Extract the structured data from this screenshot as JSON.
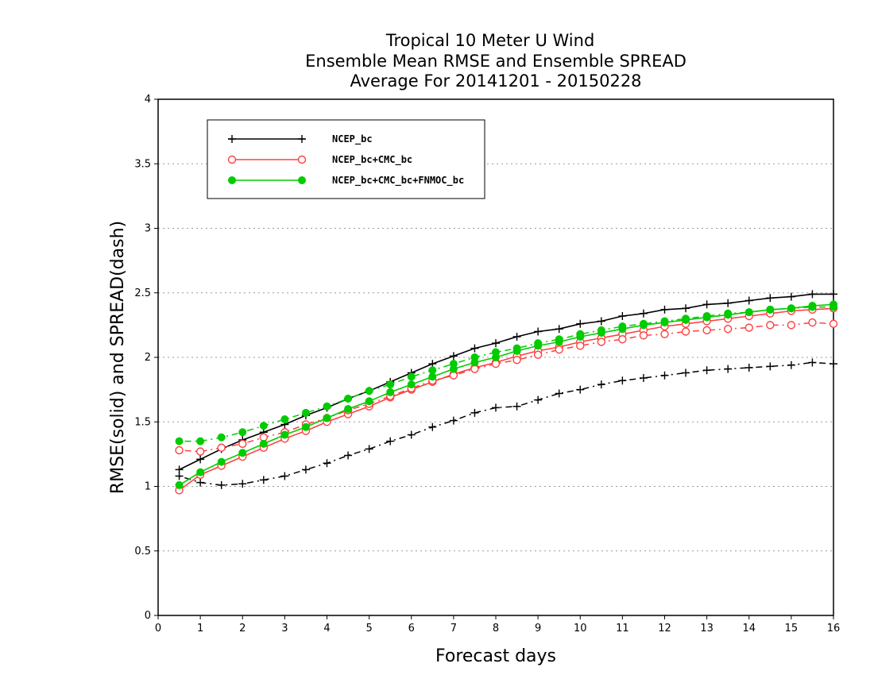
{
  "chart_data": {
    "type": "line",
    "title_lines": [
      "Tropical 10 Meter U Wind",
      "Ensemble Mean RMSE and Ensemble SPREAD",
      "Average For 20141201 - 20150228"
    ],
    "xlabel": "Forecast days",
    "ylabel": "RMSE(solid) and SPREAD(dash)",
    "xlim": [
      0,
      16
    ],
    "ylim": [
      0,
      4
    ],
    "xticks": [
      "0",
      "1",
      "2",
      "3",
      "4",
      "5",
      "6",
      "7",
      "8",
      "9",
      "10",
      "11",
      "12",
      "13",
      "14",
      "15",
      "16"
    ],
    "yticks": [
      "0",
      "0.5",
      "1",
      "1.5",
      "2",
      "2.5",
      "3",
      "3.5",
      "4"
    ],
    "grid": "horizontal dotted",
    "legend_position": "top-left",
    "x": [
      0.5,
      1,
      1.5,
      2,
      2.5,
      3,
      3.5,
      4,
      4.5,
      5,
      5.5,
      6,
      6.5,
      7,
      7.5,
      8,
      8.5,
      9,
      9.5,
      10,
      10.5,
      11,
      11.5,
      12,
      12.5,
      13,
      13.5,
      14,
      14.5,
      15,
      15.5,
      16
    ],
    "series": [
      {
        "name": "NCEP_bc",
        "color": "#000000",
        "marker": "plus",
        "rmse": [
          1.13,
          1.21,
          1.29,
          1.36,
          1.42,
          1.48,
          1.55,
          1.61,
          1.68,
          1.74,
          1.81,
          1.88,
          1.95,
          2.01,
          2.07,
          2.11,
          2.16,
          2.2,
          2.22,
          2.26,
          2.28,
          2.32,
          2.34,
          2.37,
          2.38,
          2.41,
          2.42,
          2.44,
          2.46,
          2.47,
          2.49,
          2.49
        ],
        "spread": [
          1.08,
          1.03,
          1.01,
          1.02,
          1.05,
          1.08,
          1.13,
          1.18,
          1.24,
          1.29,
          1.35,
          1.4,
          1.46,
          1.51,
          1.57,
          1.61,
          1.62,
          1.67,
          1.72,
          1.75,
          1.79,
          1.82,
          1.84,
          1.86,
          1.88,
          1.9,
          1.91,
          1.92,
          1.93,
          1.94,
          1.96,
          1.95
        ]
      },
      {
        "name": "NCEP_bc+CMC_bc",
        "color": "#ff4040",
        "marker": "open-circle",
        "rmse": [
          0.97,
          1.09,
          1.16,
          1.23,
          1.3,
          1.37,
          1.43,
          1.5,
          1.56,
          1.62,
          1.69,
          1.75,
          1.81,
          1.87,
          1.92,
          1.96,
          2.01,
          2.05,
          2.08,
          2.12,
          2.15,
          2.18,
          2.21,
          2.24,
          2.26,
          2.28,
          2.3,
          2.32,
          2.34,
          2.36,
          2.37,
          2.38
        ],
        "spread": [
          1.28,
          1.27,
          1.3,
          1.33,
          1.38,
          1.42,
          1.48,
          1.53,
          1.59,
          1.64,
          1.7,
          1.76,
          1.82,
          1.86,
          1.91,
          1.95,
          1.98,
          2.02,
          2.06,
          2.09,
          2.12,
          2.14,
          2.17,
          2.18,
          2.2,
          2.21,
          2.22,
          2.23,
          2.25,
          2.25,
          2.27,
          2.26
        ]
      },
      {
        "name": "NCEP_bc+CMC_bc+FNMOC_bc",
        "color": "#00cc00",
        "marker": "filled-circle",
        "rmse": [
          1.01,
          1.11,
          1.19,
          1.26,
          1.33,
          1.4,
          1.46,
          1.53,
          1.6,
          1.66,
          1.73,
          1.79,
          1.85,
          1.91,
          1.96,
          2.0,
          2.05,
          2.09,
          2.12,
          2.16,
          2.19,
          2.22,
          2.25,
          2.27,
          2.29,
          2.31,
          2.33,
          2.35,
          2.37,
          2.38,
          2.4,
          2.41
        ],
        "spread": [
          1.35,
          1.35,
          1.38,
          1.42,
          1.47,
          1.52,
          1.57,
          1.62,
          1.68,
          1.74,
          1.79,
          1.85,
          1.9,
          1.95,
          2.0,
          2.04,
          2.07,
          2.11,
          2.14,
          2.18,
          2.21,
          2.24,
          2.26,
          2.28,
          2.3,
          2.32,
          2.34,
          2.35,
          2.37,
          2.38,
          2.39,
          2.39
        ]
      }
    ]
  }
}
